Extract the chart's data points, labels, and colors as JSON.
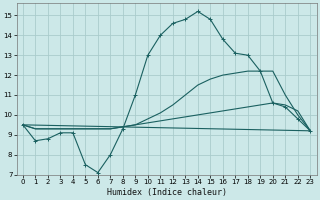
{
  "xlabel": "Humidex (Indice chaleur)",
  "bg_color": "#cce8e8",
  "grid_color": "#aacccc",
  "line_color": "#1a6060",
  "xlim": [
    -0.5,
    23.5
  ],
  "ylim": [
    7,
    15.6
  ],
  "xticks": [
    0,
    1,
    2,
    3,
    4,
    5,
    6,
    7,
    8,
    9,
    10,
    11,
    12,
    13,
    14,
    15,
    16,
    17,
    18,
    19,
    20,
    21,
    22,
    23
  ],
  "yticks": [
    7,
    8,
    9,
    10,
    11,
    12,
    13,
    14,
    15
  ],
  "line1_x": [
    0,
    1,
    2,
    3,
    4,
    5,
    6,
    7,
    8,
    9,
    10,
    11,
    12,
    13,
    14,
    15,
    16,
    17,
    18,
    19,
    20,
    21,
    22,
    23
  ],
  "line1_y": [
    9.5,
    8.7,
    8.8,
    9.1,
    9.1,
    7.5,
    7.1,
    8.0,
    9.3,
    11.0,
    13.0,
    14.0,
    14.6,
    14.8,
    15.2,
    14.8,
    13.8,
    13.1,
    13.0,
    12.2,
    10.6,
    10.4,
    9.8,
    9.2
  ],
  "line2_x": [
    0,
    23
  ],
  "line2_y": [
    9.5,
    9.2
  ],
  "line3_x": [
    0,
    1,
    2,
    3,
    4,
    5,
    6,
    7,
    8,
    9,
    10,
    11,
    12,
    13,
    14,
    15,
    16,
    17,
    18,
    19,
    20,
    21,
    22,
    23
  ],
  "line3_y": [
    9.5,
    9.3,
    9.3,
    9.3,
    9.3,
    9.3,
    9.3,
    9.3,
    9.4,
    9.5,
    9.6,
    9.7,
    9.8,
    9.9,
    10.0,
    10.1,
    10.2,
    10.3,
    10.4,
    10.5,
    10.6,
    10.5,
    10.2,
    9.2
  ],
  "line4_x": [
    0,
    1,
    2,
    3,
    4,
    5,
    6,
    7,
    8,
    9,
    10,
    11,
    12,
    13,
    14,
    15,
    16,
    17,
    18,
    19,
    20,
    21,
    22,
    23
  ],
  "line4_y": [
    9.5,
    9.3,
    9.3,
    9.3,
    9.3,
    9.3,
    9.3,
    9.3,
    9.4,
    9.5,
    9.8,
    10.1,
    10.5,
    11.0,
    11.5,
    11.8,
    12.0,
    12.1,
    12.2,
    12.2,
    12.2,
    11.0,
    10.0,
    9.2
  ]
}
